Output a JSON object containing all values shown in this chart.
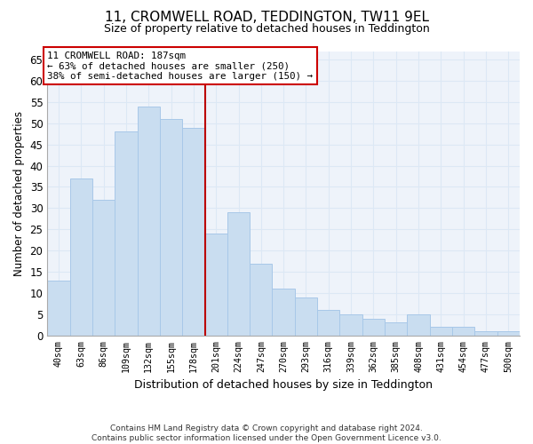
{
  "title": "11, CROMWELL ROAD, TEDDINGTON, TW11 9EL",
  "subtitle": "Size of property relative to detached houses in Teddington",
  "xlabel": "Distribution of detached houses by size in Teddington",
  "ylabel": "Number of detached properties",
  "bar_color": "#c9ddf0",
  "bar_edge_color": "#a8c8e8",
  "vline_color": "#bb0000",
  "annotation_text": "11 CROMWELL ROAD: 187sqm\n← 63% of detached houses are smaller (250)\n38% of semi-detached houses are larger (150) →",
  "annotation_box_color": "#cc0000",
  "footer_text": "Contains HM Land Registry data © Crown copyright and database right 2024.\nContains public sector information licensed under the Open Government Licence v3.0.",
  "categories": [
    "40sqm",
    "63sqm",
    "86sqm",
    "109sqm",
    "132sqm",
    "155sqm",
    "178sqm",
    "201sqm",
    "224sqm",
    "247sqm",
    "270sqm",
    "293sqm",
    "316sqm",
    "339sqm",
    "362sqm",
    "385sqm",
    "408sqm",
    "431sqm",
    "454sqm",
    "477sqm",
    "500sqm"
  ],
  "values": [
    13,
    37,
    32,
    48,
    54,
    51,
    49,
    24,
    29,
    17,
    11,
    9,
    6,
    5,
    4,
    3,
    5,
    2,
    2,
    1,
    1
  ],
  "ylim": [
    0,
    67
  ],
  "yticks": [
    0,
    5,
    10,
    15,
    20,
    25,
    30,
    35,
    40,
    45,
    50,
    55,
    60,
    65
  ],
  "grid_color": "#dce8f5",
  "background_color": "#eef3fa",
  "vline_bar_index": 7
}
